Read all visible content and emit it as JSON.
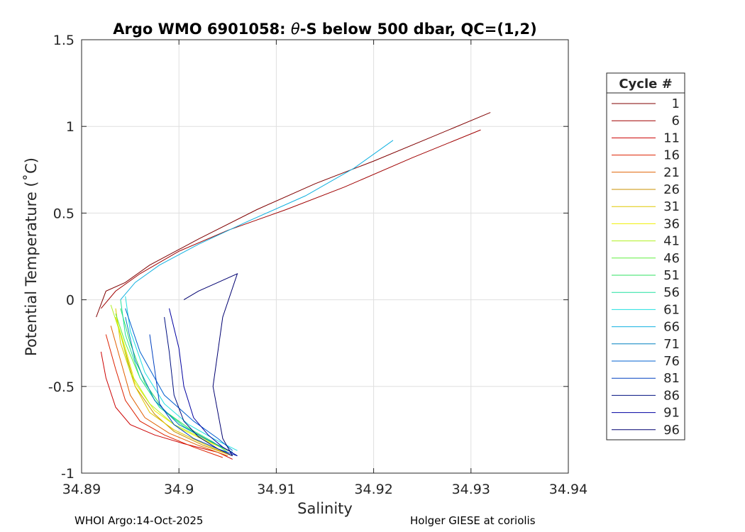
{
  "footer": {
    "left": "WHOI Argo:14-Oct-2025",
    "right": "Holger GIESE at coriolis"
  },
  "chart_data": {
    "type": "line",
    "title": "Argo WMO 6901058: θ-S below 500 dbar,  QC=(1,2)",
    "title_parts": {
      "prefix": "Argo WMO 6901058: ",
      "symbol": "θ",
      "suffix": "-S below 500 dbar,  QC=(1,2)"
    },
    "xlabel": "Salinity",
    "ylabel": "Potential Temperature (˚C)",
    "xlim": [
      34.89,
      34.94
    ],
    "ylim": [
      -1,
      1.5
    ],
    "xticks": [
      34.89,
      34.9,
      34.91,
      34.92,
      34.93,
      34.94
    ],
    "xtick_labels": [
      "34.89",
      "34.9",
      "34.91",
      "34.92",
      "34.93",
      "34.94"
    ],
    "yticks": [
      -1,
      -0.5,
      0,
      0.5,
      1,
      1.5
    ],
    "ytick_labels": [
      "-1",
      "-0.5",
      "0",
      "0.5",
      "1",
      "1.5"
    ],
    "grid": true,
    "legend_title": "Cycle #",
    "legend_position": "right",
    "series": [
      {
        "name": "1",
        "color": "#800000",
        "x": [
          34.8915,
          34.8925,
          34.8945,
          34.897,
          34.902,
          34.908,
          34.914,
          34.92,
          34.926,
          34.932
        ],
        "y": [
          -0.1,
          0.05,
          0.1,
          0.2,
          0.35,
          0.52,
          0.67,
          0.8,
          0.94,
          1.08
        ]
      },
      {
        "name": "6",
        "color": "#a00000",
        "x": [
          34.892,
          34.8935,
          34.896,
          34.9,
          34.905,
          34.911,
          34.917,
          34.924,
          34.931
        ],
        "y": [
          -0.05,
          0.05,
          0.15,
          0.28,
          0.4,
          0.52,
          0.65,
          0.82,
          0.98
        ]
      },
      {
        "name": "11",
        "color": "#cc0000",
        "x": [
          34.892,
          34.8925,
          34.8935,
          34.895,
          34.8975,
          34.9005,
          34.904,
          34.9055
        ],
        "y": [
          -0.3,
          -0.45,
          -0.62,
          -0.72,
          -0.78,
          -0.83,
          -0.88,
          -0.92
        ]
      },
      {
        "name": "16",
        "color": "#dd2200",
        "x": [
          34.8925,
          34.8935,
          34.8945,
          34.896,
          34.8985,
          34.9015,
          34.9045
        ],
        "y": [
          -0.2,
          -0.4,
          -0.58,
          -0.7,
          -0.78,
          -0.85,
          -0.91
        ]
      },
      {
        "name": "21",
        "color": "#e06000",
        "x": [
          34.893,
          34.894,
          34.895,
          34.8965,
          34.899,
          34.902,
          34.905
        ],
        "y": [
          -0.15,
          -0.35,
          -0.55,
          -0.68,
          -0.77,
          -0.84,
          -0.9
        ]
      },
      {
        "name": "26",
        "color": "#c89000",
        "x": [
          34.8935,
          34.8945,
          34.8955,
          34.8975,
          34.8995,
          34.9025,
          34.9055
        ],
        "y": [
          -0.1,
          -0.3,
          -0.5,
          -0.66,
          -0.76,
          -0.84,
          -0.9
        ]
      },
      {
        "name": "31",
        "color": "#e0c800",
        "x": [
          34.8935,
          34.894,
          34.8955,
          34.897,
          34.8995,
          34.9025,
          34.905
        ],
        "y": [
          -0.05,
          -0.25,
          -0.5,
          -0.65,
          -0.75,
          -0.83,
          -0.89
        ]
      },
      {
        "name": "36",
        "color": "#f0f000",
        "x": [
          34.8935,
          34.8945,
          34.8955,
          34.8975,
          34.9,
          34.903,
          34.9055
        ],
        "y": [
          -0.1,
          -0.28,
          -0.48,
          -0.64,
          -0.74,
          -0.82,
          -0.88
        ]
      },
      {
        "name": "41",
        "color": "#b0f020",
        "x": [
          34.893,
          34.894,
          34.895,
          34.897,
          34.8995,
          34.9025,
          34.905
        ],
        "y": [
          -0.03,
          -0.2,
          -0.42,
          -0.6,
          -0.72,
          -0.8,
          -0.87
        ]
      },
      {
        "name": "46",
        "color": "#60f040",
        "x": [
          34.8935,
          34.8945,
          34.896,
          34.898,
          34.9005,
          34.903,
          34.9055
        ],
        "y": [
          -0.08,
          -0.25,
          -0.45,
          -0.62,
          -0.73,
          -0.81,
          -0.88
        ]
      },
      {
        "name": "51",
        "color": "#30e060",
        "x": [
          34.894,
          34.895,
          34.8965,
          34.8985,
          34.901,
          34.9035,
          34.905
        ],
        "y": [
          -0.05,
          -0.25,
          -0.48,
          -0.64,
          -0.74,
          -0.82,
          -0.88
        ]
      },
      {
        "name": "56",
        "color": "#20e0a0",
        "x": [
          34.894,
          34.8945,
          34.896,
          34.898,
          34.9005,
          34.903,
          34.9055
        ],
        "y": [
          0.0,
          -0.2,
          -0.45,
          -0.62,
          -0.73,
          -0.81,
          -0.88
        ]
      },
      {
        "name": "61",
        "color": "#20e0e0",
        "x": [
          34.8945,
          34.895,
          34.8965,
          34.8985,
          34.901,
          34.9035,
          34.906
        ],
        "y": [
          0.02,
          -0.18,
          -0.42,
          -0.6,
          -0.72,
          -0.8,
          -0.87
        ]
      },
      {
        "name": "66",
        "color": "#10b0e0",
        "x": [
          34.894,
          34.8955,
          34.898,
          34.902,
          34.907,
          34.913,
          34.918,
          34.922
        ],
        "y": [
          0.0,
          0.1,
          0.2,
          0.32,
          0.45,
          0.6,
          0.76,
          0.92
        ]
      },
      {
        "name": "71",
        "color": "#0080c0",
        "x": [
          34.8945,
          34.8955,
          34.8975,
          34.9,
          34.903,
          34.9055
        ],
        "y": [
          -0.1,
          -0.35,
          -0.58,
          -0.72,
          -0.81,
          -0.88
        ]
      },
      {
        "name": "76",
        "color": "#0060d0",
        "x": [
          34.8945,
          34.896,
          34.8985,
          34.9015,
          34.904,
          34.9055
        ],
        "y": [
          -0.05,
          -0.3,
          -0.55,
          -0.7,
          -0.8,
          -0.87
        ]
      },
      {
        "name": "81",
        "color": "#0040c0",
        "x": [
          34.897,
          34.8975,
          34.898,
          34.8995,
          34.9015,
          34.904,
          34.906
        ],
        "y": [
          -0.2,
          -0.4,
          -0.6,
          -0.72,
          -0.8,
          -0.86,
          -0.9
        ]
      },
      {
        "name": "86",
        "color": "#001080",
        "x": [
          34.8985,
          34.899,
          34.8995,
          34.9005,
          34.902,
          34.904,
          34.9055
        ],
        "y": [
          -0.1,
          -0.3,
          -0.55,
          -0.7,
          -0.79,
          -0.86,
          -0.9
        ]
      },
      {
        "name": "91",
        "color": "#0000a0",
        "x": [
          34.899,
          34.9,
          34.9005,
          34.9015,
          34.903,
          34.9045,
          34.906
        ],
        "y": [
          -0.05,
          -0.28,
          -0.5,
          -0.68,
          -0.78,
          -0.85,
          -0.9
        ]
      },
      {
        "name": "96",
        "color": "#000070",
        "x": [
          34.9005,
          34.902,
          34.904,
          34.906,
          34.9045,
          34.9035,
          34.9045,
          34.9055
        ],
        "y": [
          0.0,
          0.05,
          0.1,
          0.15,
          -0.1,
          -0.5,
          -0.8,
          -0.9
        ]
      }
    ]
  }
}
